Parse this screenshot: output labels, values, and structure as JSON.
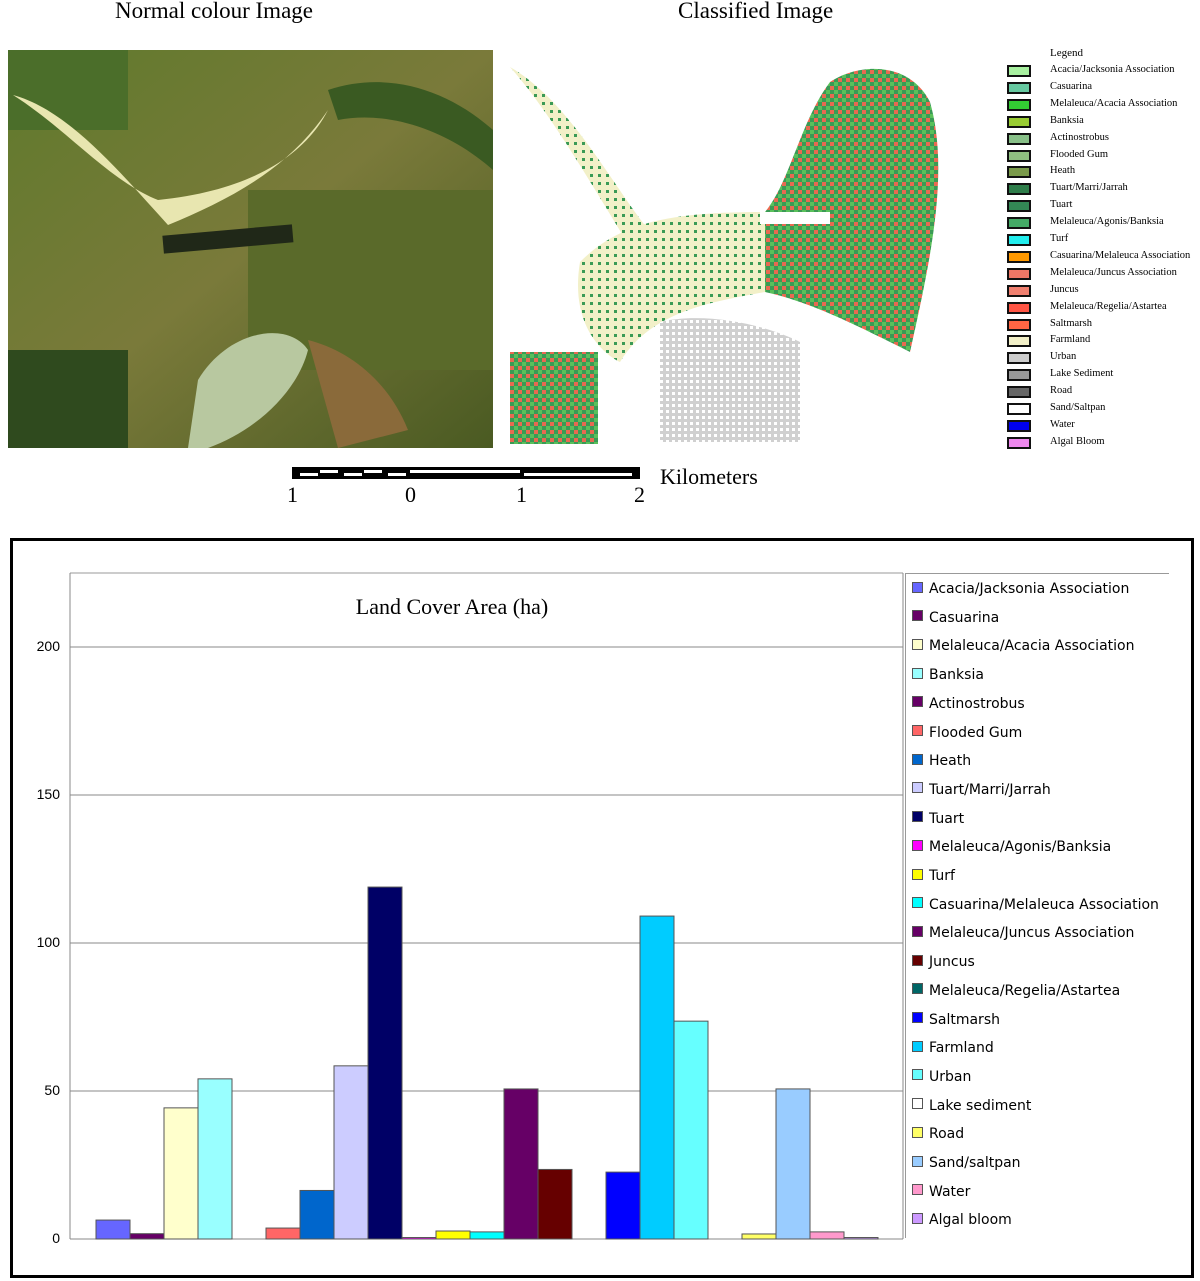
{
  "top": {
    "left_title": "Normal colour Image",
    "right_title": "Classified  Image",
    "map_legend": {
      "title": "Legend",
      "items": [
        {
          "label": "Acacia/Jacksonia Association",
          "color": "#a8f0a0"
        },
        {
          "label": "Casuarina",
          "color": "#66c8a0"
        },
        {
          "label": "Melaleuca/Acacia Association",
          "color": "#33cc33"
        },
        {
          "label": "Banksia",
          "color": "#99cc33"
        },
        {
          "label": "Actinostrobus",
          "color": "#88c088"
        },
        {
          "label": "Flooded Gum",
          "color": "#8fbf80"
        },
        {
          "label": "Heath",
          "color": "#7a9a4a"
        },
        {
          "label": "Tuart/Marri/Jarrah",
          "color": "#2e7d4a"
        },
        {
          "label": "Tuart",
          "color": "#338855"
        },
        {
          "label": "Melaleuca/Agonis/Banksia",
          "color": "#44aa66"
        },
        {
          "label": "Turf",
          "color": "#22eeee"
        },
        {
          "label": "Casuarina/Melaleuca Association",
          "color": "#ff9900"
        },
        {
          "label": "Melaleuca/Juncus Association",
          "color": "#ee7766"
        },
        {
          "label": "Juncus",
          "color": "#f08070"
        },
        {
          "label": "Melaleuca/Regelia/Astartea",
          "color": "#ff5544"
        },
        {
          "label": "Saltmarsh",
          "color": "#ff6644"
        },
        {
          "label": "Farmland",
          "color": "#f2f0c8"
        },
        {
          "label": "Urban",
          "color": "#cccccc"
        },
        {
          "label": "Lake Sediment",
          "color": "#999999"
        },
        {
          "label": "Road",
          "color": "#666666"
        },
        {
          "label": "Sand/Saltpan",
          "color": "#ffffff"
        },
        {
          "label": "Water",
          "color": "#0000ee"
        },
        {
          "label": "Algal Bloom",
          "color": "#ee88ee"
        }
      ]
    },
    "scale": {
      "labels": [
        "1",
        "0",
        "1",
        "2"
      ],
      "unit": "Kilometers"
    }
  },
  "chart_data": {
    "type": "bar",
    "title": "Land Cover Area (ha)",
    "xlabel": "",
    "ylabel": "",
    "ylim": [
      0,
      225
    ],
    "yticks": [
      0,
      50,
      100,
      150,
      200
    ],
    "grid": true,
    "legend_placement": "right",
    "series": [
      {
        "name": "Acacia/Jacksonia  Association",
        "value": 6.4,
        "color": "#6666ff"
      },
      {
        "name": "Casuarina",
        "value": 1.8,
        "color": "#660066"
      },
      {
        "name": "Melaleuca/Acacia Association",
        "value": 44.3,
        "color": "#ffffcc"
      },
      {
        "name": "Banksia",
        "value": 54.1,
        "color": "#99ffff"
      },
      {
        "name": "Actinostrobus",
        "value": 0,
        "color": "#660066"
      },
      {
        "name": "Flooded Gum",
        "value": 3.7,
        "color": "#ff6666"
      },
      {
        "name": "Heath",
        "value": 16.4,
        "color": "#0066cc"
      },
      {
        "name": "Tuart/Marri/Jarrah",
        "value": 58.5,
        "color": "#ccccff"
      },
      {
        "name": "Tuart",
        "value": 118.9,
        "color": "#000066"
      },
      {
        "name": "Melaleuca/Agonis/Banksia",
        "value": 0.5,
        "color": "#ff00ff"
      },
      {
        "name": "Turf",
        "value": 2.7,
        "color": "#ffff00"
      },
      {
        "name": "Casuarina/Melaleuca Association",
        "value": 2.4,
        "color": "#00ffff"
      },
      {
        "name": "Melaleuca/Juncus Association",
        "value": 50.7,
        "color": "#660066"
      },
      {
        "name": "Juncus",
        "value": 23.5,
        "color": "#660000"
      },
      {
        "name": "Melaleuca/Regelia/Astartea",
        "value": 0,
        "color": "#006666"
      },
      {
        "name": "Saltmarsh",
        "value": 22.6,
        "color": "#0000ff"
      },
      {
        "name": "Farmland",
        "value": 109.1,
        "color": "#00ccff"
      },
      {
        "name": "Urban",
        "value": 73.6,
        "color": "#66ffff"
      },
      {
        "name": "Lake sediment",
        "value": 0,
        "color": "#ffffff"
      },
      {
        "name": "Road",
        "value": 1.7,
        "color": "#ffff66"
      },
      {
        "name": "Sand/saltpan",
        "value": 50.7,
        "color": "#99ccff"
      },
      {
        "name": "Water",
        "value": 2.4,
        "color": "#ff99cc"
      },
      {
        "name": "Algal bloom",
        "value": 0.5,
        "color": "#cc99ff"
      }
    ]
  }
}
